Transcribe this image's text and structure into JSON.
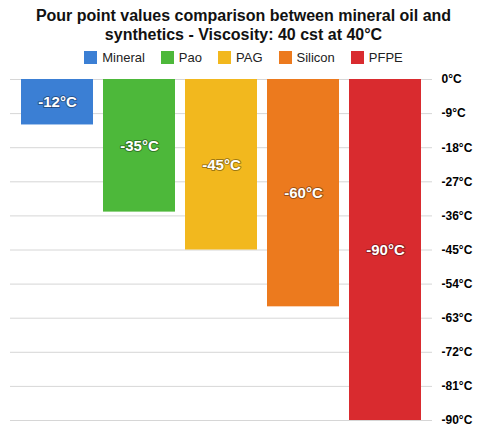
{
  "chart_data": {
    "type": "bar",
    "title": "Pour point values comparison between mineral oil and synthetics - Viscosity: 40 cst at 40°C",
    "categories": [
      "Mineral",
      "Pao",
      "PAG",
      "Silicon",
      "PFPE"
    ],
    "values": [
      -12,
      -35,
      -45,
      -60,
      -90
    ],
    "value_labels": [
      "-12°C",
      "-35°C",
      "-45°C",
      "-60°C",
      "-90°C"
    ],
    "colors": [
      "#3b7fd4",
      "#4db83a",
      "#f2b81e",
      "#ec7a1e",
      "#d92b2f"
    ],
    "ylim": [
      -90,
      0
    ],
    "yticks": [
      {
        "value": 0,
        "label": "0°C"
      },
      {
        "value": -9,
        "label": "-9°C"
      },
      {
        "value": -18,
        "label": "-18°C"
      },
      {
        "value": -27,
        "label": "-27°C"
      },
      {
        "value": -36,
        "label": "-36°C"
      },
      {
        "value": -45,
        "label": "-45°C"
      },
      {
        "value": -54,
        "label": "-54°C"
      },
      {
        "value": -63,
        "label": "-63°C"
      },
      {
        "value": -72,
        "label": "-72°C"
      },
      {
        "value": -81,
        "label": "-81°C"
      },
      {
        "value": -90,
        "label": "-90°C"
      }
    ],
    "grid": true,
    "legend": "top",
    "data_labels": true,
    "tick_labels": "y"
  }
}
